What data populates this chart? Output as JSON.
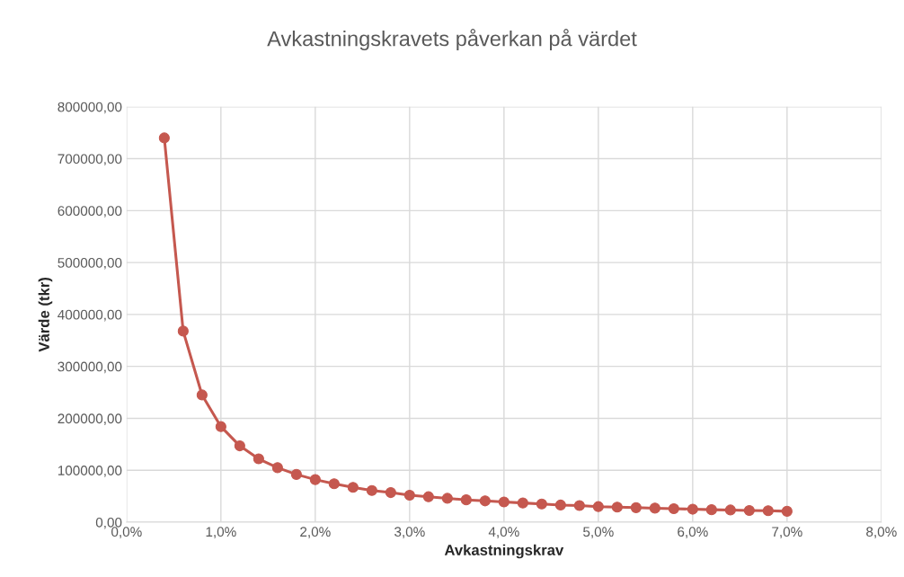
{
  "chart_data": {
    "type": "line",
    "title": "Avkastningskravets påverkan på värdet",
    "xlabel": "Avkastningskrav",
    "ylabel": "Värde (tkr)",
    "x": [
      0.4,
      0.6,
      0.8,
      1.0,
      1.2,
      1.4,
      1.6,
      1.8,
      2.0,
      2.2,
      2.4,
      2.6,
      2.8,
      3.0,
      3.2,
      3.4,
      3.6,
      3.8,
      4.0,
      4.2,
      4.4,
      4.6,
      4.8,
      5.0,
      5.2,
      5.4,
      5.6,
      5.8,
      6.0,
      6.2,
      6.4,
      6.6,
      6.8,
      7.0
    ],
    "series": [
      {
        "color": "#c5584f",
        "values": [
          740000,
          368000,
          245000,
          184000,
          147000,
          122000,
          105000,
          92000,
          82000,
          74000,
          67000,
          61000,
          57000,
          52000,
          49000,
          46000,
          43000,
          41000,
          39000,
          37000,
          35000,
          33000,
          32000,
          30000,
          29000,
          28000,
          27000,
          26000,
          25000,
          24000,
          23500,
          22500,
          22000,
          21000
        ]
      }
    ],
    "xlim": [
      0,
      8
    ],
    "ylim": [
      0,
      800000
    ],
    "xticks": [
      {
        "value": 0,
        "label": "0,0%"
      },
      {
        "value": 1,
        "label": "1,0%"
      },
      {
        "value": 2,
        "label": "2,0%"
      },
      {
        "value": 3,
        "label": "3,0%"
      },
      {
        "value": 4,
        "label": "4,0%"
      },
      {
        "value": 5,
        "label": "5,0%"
      },
      {
        "value": 6,
        "label": "6,0%"
      },
      {
        "value": 7,
        "label": "7,0%"
      },
      {
        "value": 8,
        "label": "8,0%"
      }
    ],
    "yticks": [
      {
        "value": 0,
        "label": "0,00"
      },
      {
        "value": 100000,
        "label": "100000,00"
      },
      {
        "value": 200000,
        "label": "200000,00"
      },
      {
        "value": 300000,
        "label": "300000,00"
      },
      {
        "value": 400000,
        "label": "400000,00"
      },
      {
        "value": 500000,
        "label": "500000,00"
      },
      {
        "value": 600000,
        "label": "600000,00"
      },
      {
        "value": 700000,
        "label": "700000,00"
      },
      {
        "value": 800000,
        "label": "800000,00"
      }
    ],
    "grid": true,
    "marker": "circle",
    "line_style": "solid"
  }
}
